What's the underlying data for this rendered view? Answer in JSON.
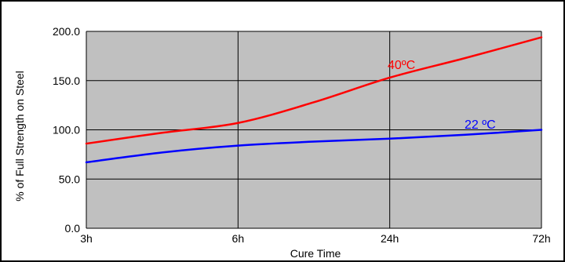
{
  "chart_data": {
    "type": "line",
    "x": [
      "3h",
      "6h",
      "24h",
      "72h"
    ],
    "xlabel": "Cure Time",
    "ylabel": "% of Full Strength on Steel",
    "ylim": [
      0,
      200
    ],
    "yticks": [
      "0.0",
      "50.0",
      "100.0",
      "150.0",
      "200.0"
    ],
    "grid": true,
    "plot_background": "#c0c0c0",
    "series": [
      {
        "name": "40ºC",
        "color": "#ff0000",
        "x": [
          0,
          0.5,
          1,
          1.5,
          2,
          2.5,
          3
        ],
        "values": [
          86,
          97,
          107,
          128,
          153,
          173,
          194
        ]
      },
      {
        "name": "22 ºC",
        "color": "#0000ff",
        "x": [
          0,
          0.5,
          1,
          1.5,
          2,
          2.5,
          3
        ],
        "values": [
          67,
          77,
          84,
          88,
          91,
          95,
          100
        ]
      }
    ]
  }
}
